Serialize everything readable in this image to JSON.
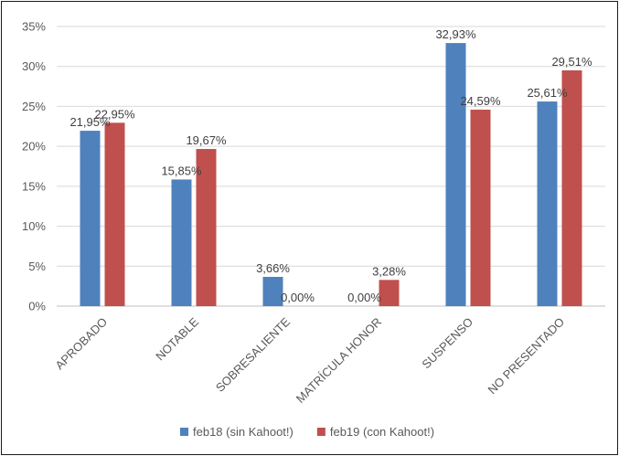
{
  "chart_data": {
    "type": "bar",
    "categories": [
      "APROBADO",
      "NOTABLE",
      "SOBRESALIENTE",
      "MATRÍCULA HONOR",
      "SUSPENSO",
      "NO PRESENTADO"
    ],
    "series": [
      {
        "name": "feb18 (sin Kahoot!)",
        "values": [
          21.95,
          15.85,
          3.66,
          0.0,
          32.93,
          25.61
        ],
        "labels": [
          "21,95%",
          "15,85%",
          "3,66%",
          "0,00%",
          "32,93%",
          "25,61%"
        ],
        "color": "#4F81BD"
      },
      {
        "name": "feb19 (con Kahoot!)",
        "values": [
          22.95,
          19.67,
          0.0,
          3.28,
          24.59,
          29.51
        ],
        "labels": [
          "22,95%",
          "19,67%",
          "0,00%",
          "3,28%",
          "24,59%",
          "29,51%"
        ],
        "color": "#C0504D"
      }
    ],
    "yticks": [
      0,
      5,
      10,
      15,
      20,
      25,
      30,
      35
    ],
    "ytick_labels": [
      "0%",
      "5%",
      "10%",
      "15%",
      "20%",
      "25%",
      "30%",
      "35%"
    ],
    "ylim": [
      0,
      35
    ],
    "grid": true,
    "legend_position": "bottom",
    "title": "",
    "xlabel": "",
    "ylabel": ""
  }
}
